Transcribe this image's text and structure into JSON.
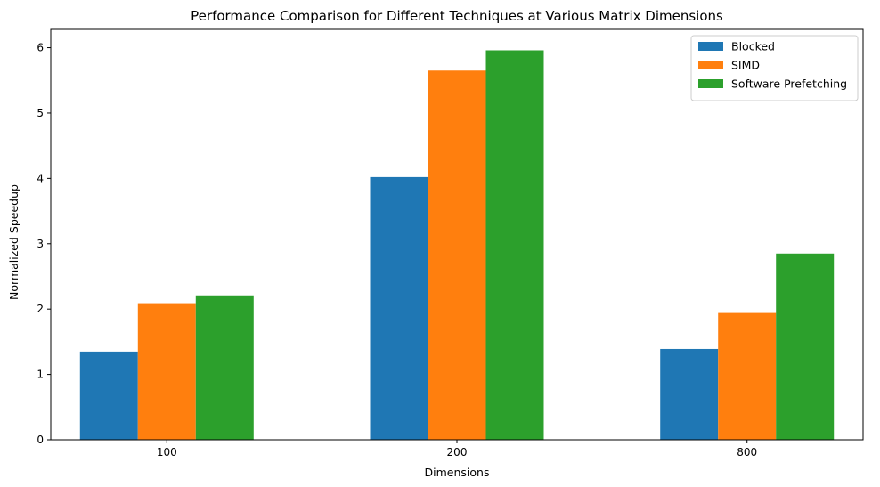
{
  "chart_data": {
    "type": "bar",
    "title": "Performance Comparison for Different Techniques at Various Matrix Dimensions",
    "xlabel": "Dimensions",
    "ylabel": "Normalized Speedup",
    "categories": [
      "100",
      "200",
      "800"
    ],
    "ylim": [
      0,
      6.28
    ],
    "yticks": [
      0,
      1,
      2,
      3,
      4,
      5,
      6
    ],
    "grid": false,
    "legend_position": "top-right",
    "series": [
      {
        "name": "Blocked",
        "color": "#1f77b4",
        "values": [
          1.35,
          4.02,
          1.39
        ]
      },
      {
        "name": "SIMD",
        "color": "#ff7f0e",
        "values": [
          2.09,
          5.65,
          1.94
        ]
      },
      {
        "name": "Software Prefetching",
        "color": "#2ca02c",
        "values": [
          2.21,
          5.96,
          2.85
        ]
      }
    ]
  }
}
